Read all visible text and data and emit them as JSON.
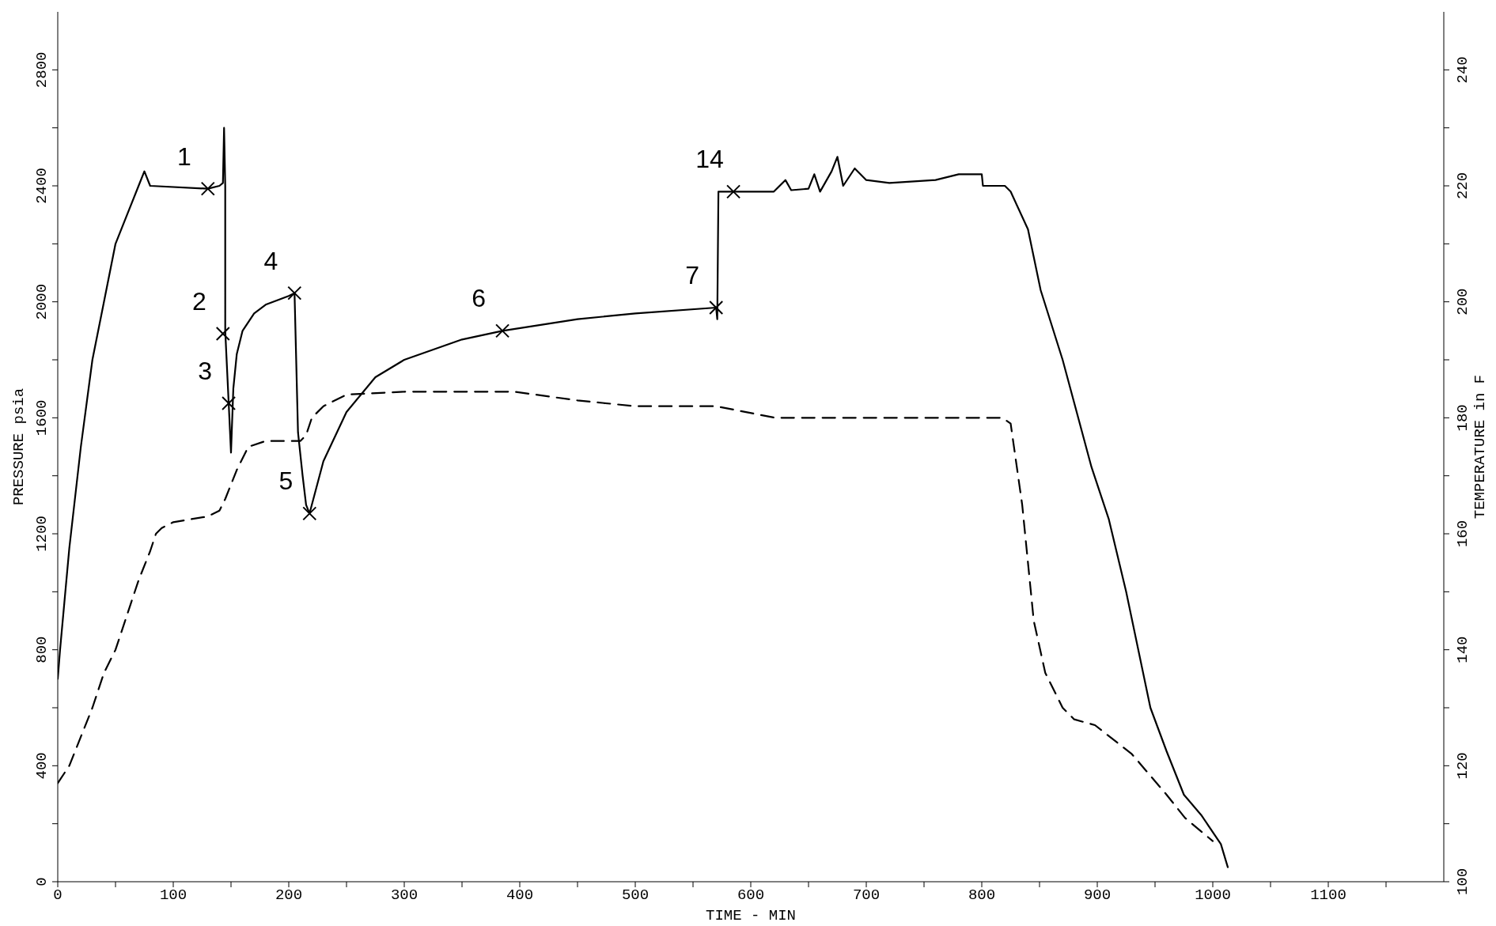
{
  "chart_data": {
    "type": "line",
    "xlabel": "TIME - MIN",
    "ylabel": "PRESSURE psia",
    "y2label": "TEMPERATURE in F",
    "xlim": [
      0,
      1200
    ],
    "ylim": [
      0,
      3000
    ],
    "y2lim": [
      100,
      250
    ],
    "xticks": [
      0,
      {
        "value": 50,
        "label": null
      },
      100,
      {
        "value": 150,
        "label": null
      },
      200,
      {
        "value": 250,
        "label": null
      },
      300,
      {
        "value": 350,
        "label": null
      },
      400,
      {
        "value": 450,
        "label": null
      },
      500,
      {
        "value": 550,
        "label": null
      },
      600,
      {
        "value": 650,
        "label": null
      },
      700,
      {
        "value": 750,
        "label": null
      },
      800,
      {
        "value": 850,
        "label": null
      },
      900,
      {
        "value": 950,
        "label": null
      },
      1000,
      {
        "value": 1050,
        "label": null
      },
      1100,
      {
        "value": 1150,
        "label": null
      }
    ],
    "yticks": [
      0,
      {
        "value": 200,
        "label": null
      },
      400,
      {
        "value": 600,
        "label": null
      },
      800,
      {
        "value": 1000,
        "label": null
      },
      1200,
      {
        "value": 1400,
        "label": null
      },
      1600,
      {
        "value": 1800,
        "label": null
      },
      2000,
      {
        "value": 2200,
        "label": null
      },
      2400,
      {
        "value": 2600,
        "label": null
      },
      2800
    ],
    "y2ticks": [
      100,
      {
        "value": 110,
        "label": null
      },
      120,
      {
        "value": 130,
        "label": null
      },
      140,
      {
        "value": 150,
        "label": null
      },
      160,
      {
        "value": 170,
        "label": null
      },
      180,
      {
        "value": 190,
        "label": null
      },
      200,
      {
        "value": 210,
        "label": null
      },
      220,
      {
        "value": 230,
        "label": null
      },
      240
    ],
    "series": [
      {
        "color": "#000000",
        "line_style": "solid",
        "marker": "none",
        "x": [
          0,
          2,
          10,
          20,
          30,
          40,
          50,
          60,
          70,
          75,
          80,
          130,
          140,
          143,
          144,
          145,
          145,
          148,
          150,
          152,
          155,
          160,
          170,
          180,
          200,
          205,
          208,
          212,
          215,
          218,
          230,
          250,
          275,
          300,
          350,
          385,
          450,
          500,
          570,
          571,
          572,
          585,
          620,
          630,
          635,
          650,
          655,
          660,
          670,
          675,
          680,
          690,
          700,
          720,
          760,
          780,
          800,
          801,
          820,
          825,
          840,
          851,
          870,
          895,
          910,
          925,
          946,
          960,
          975,
          990,
          1007,
          1013
        ],
        "values": [
          700,
          800,
          1150,
          1500,
          1800,
          2000,
          2200,
          2300,
          2400,
          2450,
          2400,
          2390,
          2400,
          2410,
          2600,
          2400,
          1900,
          1650,
          1480,
          1700,
          1820,
          1900,
          1960,
          1990,
          2020,
          2030,
          1550,
          1400,
          1300,
          1270,
          1450,
          1620,
          1740,
          1800,
          1870,
          1900,
          1940,
          1960,
          1980,
          1940,
          2380,
          2380,
          2380,
          2420,
          2385,
          2390,
          2440,
          2380,
          2450,
          2500,
          2400,
          2460,
          2420,
          2410,
          2420,
          2440,
          2440,
          2400,
          2400,
          2380,
          2250,
          2040,
          1800,
          1430,
          1250,
          1000,
          600,
          450,
          300,
          230,
          130,
          50
        ]
      },
      {
        "color": "#000000",
        "axis": "y2",
        "line_style": "dashed",
        "marker": "none",
        "x": [
          0,
          10,
          20,
          30,
          40,
          50,
          60,
          70,
          80,
          85,
          90,
          100,
          130,
          140,
          145,
          155,
          165,
          180,
          210,
          215,
          220,
          230,
          250,
          300,
          395,
          450,
          500,
          570,
          621,
          650,
          818,
          825,
          835,
          845,
          855,
          870,
          880,
          898,
          930,
          960,
          976,
          1000
        ],
        "values": [
          117,
          120,
          125,
          130,
          136,
          140,
          146,
          152,
          157,
          160,
          161,
          162,
          163,
          164,
          166,
          171,
          175,
          176,
          176,
          177,
          180,
          182,
          184,
          184.5,
          184.5,
          183,
          182,
          182,
          180,
          180,
          180,
          179,
          165,
          145,
          136,
          130,
          128,
          127,
          122,
          115,
          111,
          107
        ]
      },
      {
        "type": "scatter",
        "color": "#000000",
        "marker": "cross",
        "x": [
          130,
          143,
          148,
          205,
          218,
          385,
          570,
          585
        ],
        "values": [
          2390,
          1890,
          1650,
          2030,
          1270,
          1900,
          1980,
          2380
        ]
      }
    ],
    "annotations": [
      {
        "text": "1",
        "x": 130,
        "y": 2390
      },
      {
        "text": "2",
        "x": 143,
        "y": 1890
      },
      {
        "text": "3",
        "x": 148,
        "y": 1650
      },
      {
        "text": "4",
        "x": 205,
        "y": 2030
      },
      {
        "text": "5",
        "x": 218,
        "y": 1270
      },
      {
        "text": "6",
        "x": 385,
        "y": 1900
      },
      {
        "text": "7",
        "x": 570,
        "y": 1980
      },
      {
        "text": "14",
        "x": 585,
        "y": 2380
      }
    ]
  }
}
